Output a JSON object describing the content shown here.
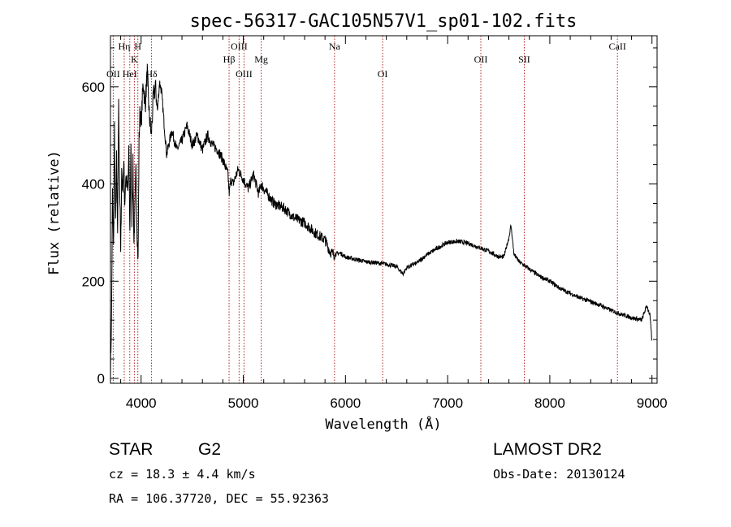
{
  "chart_data": {
    "type": "line",
    "title": "spec-56317-GAC105N57V1_sp01-102.fits",
    "xlabel": "Wavelength (Å)",
    "ylabel": "Flux (relative)",
    "xlim": [
      3700,
      9050
    ],
    "ylim": [
      -10,
      705
    ],
    "xticks": [
      4000,
      5000,
      6000,
      7000,
      8000,
      9000
    ],
    "yticks": [
      0,
      200,
      400,
      600
    ],
    "grid": false,
    "line_color": "#000000",
    "marker_color": "#b22222",
    "spectrum": {
      "x": [
        3700,
        3710,
        3720,
        3730,
        3740,
        3750,
        3760,
        3770,
        3780,
        3790,
        3800,
        3810,
        3820,
        3830,
        3840,
        3850,
        3860,
        3870,
        3880,
        3890,
        3900,
        3910,
        3920,
        3930,
        3940,
        3950,
        3960,
        3970,
        3980,
        3990,
        4000,
        4020,
        4040,
        4060,
        4080,
        4100,
        4120,
        4140,
        4160,
        4180,
        4200,
        4250,
        4300,
        4350,
        4400,
        4450,
        4500,
        4550,
        4600,
        4650,
        4700,
        4750,
        4800,
        4850,
        4861,
        4880,
        4900,
        4950,
        5000,
        5050,
        5100,
        5150,
        5175,
        5200,
        5300,
        5400,
        5500,
        5600,
        5700,
        5800,
        5850,
        5893,
        5950,
        6000,
        6100,
        6200,
        6300,
        6400,
        6500,
        6563,
        6600,
        6700,
        6800,
        6900,
        7000,
        7100,
        7200,
        7300,
        7400,
        7500,
        7550,
        7600,
        7620,
        7650,
        7700,
        7800,
        7900,
        8000,
        8100,
        8200,
        8300,
        8400,
        8500,
        8600,
        8700,
        8800,
        8900,
        8950,
        8980,
        9000
      ],
      "flux": [
        5,
        120,
        380,
        260,
        520,
        310,
        450,
        280,
        560,
        410,
        250,
        430,
        390,
        440,
        360,
        420,
        400,
        380,
        460,
        300,
        470,
        330,
        440,
        280,
        350,
        430,
        310,
        240,
        490,
        560,
        520,
        610,
        560,
        630,
        540,
        500,
        580,
        600,
        550,
        610,
        590,
        460,
        510,
        470,
        490,
        520,
        480,
        500,
        470,
        500,
        480,
        470,
        450,
        420,
        380,
        410,
        400,
        430,
        410,
        390,
        420,
        380,
        400,
        390,
        360,
        350,
        330,
        320,
        300,
        285,
        260,
        255,
        258,
        250,
        245,
        240,
        238,
        235,
        230,
        215,
        228,
        238,
        255,
        268,
        280,
        282,
        278,
        270,
        262,
        250,
        250,
        290,
        315,
        255,
        240,
        225,
        210,
        200,
        185,
        175,
        165,
        158,
        150,
        140,
        132,
        125,
        120,
        150,
        130,
        75
      ]
    },
    "lines": [
      {
        "label": "OII",
        "x": 3727,
        "row": 3
      },
      {
        "label": "Hη",
        "x": 3835,
        "row": 1
      },
      {
        "label": "HeI",
        "x": 3889,
        "row": 3
      },
      {
        "label": "K",
        "x": 3934,
        "row": 2
      },
      {
        "label": "H",
        "x": 3968,
        "row": 1
      },
      {
        "label": "Hδ",
        "x": 4102,
        "row": 3
      },
      {
        "label": "Hβ",
        "x": 4861,
        "row": 2
      },
      {
        "label": "OIII",
        "x": 4959,
        "row": 1
      },
      {
        "label": "OIII",
        "x": 5007,
        "row": 3
      },
      {
        "label": "Mg",
        "x": 5175,
        "row": 2
      },
      {
        "label": "Na",
        "x": 5893,
        "row": 1
      },
      {
        "label": "OI",
        "x": 6364,
        "row": 3
      },
      {
        "label": "OII",
        "x": 7325,
        "row": 2
      },
      {
        "label": "SII",
        "x": 7750,
        "row": 2
      },
      {
        "label": "CaII",
        "x": 8662,
        "row": 1
      }
    ]
  },
  "info": {
    "class": "STAR",
    "subclass": "G2",
    "survey": "LAMOST DR2",
    "cz": "cz = 18.3 ± 4.4 km/s",
    "obs_date": "Obs-Date: 20130124",
    "coords": "RA = 106.37720, DEC =  55.92363"
  }
}
